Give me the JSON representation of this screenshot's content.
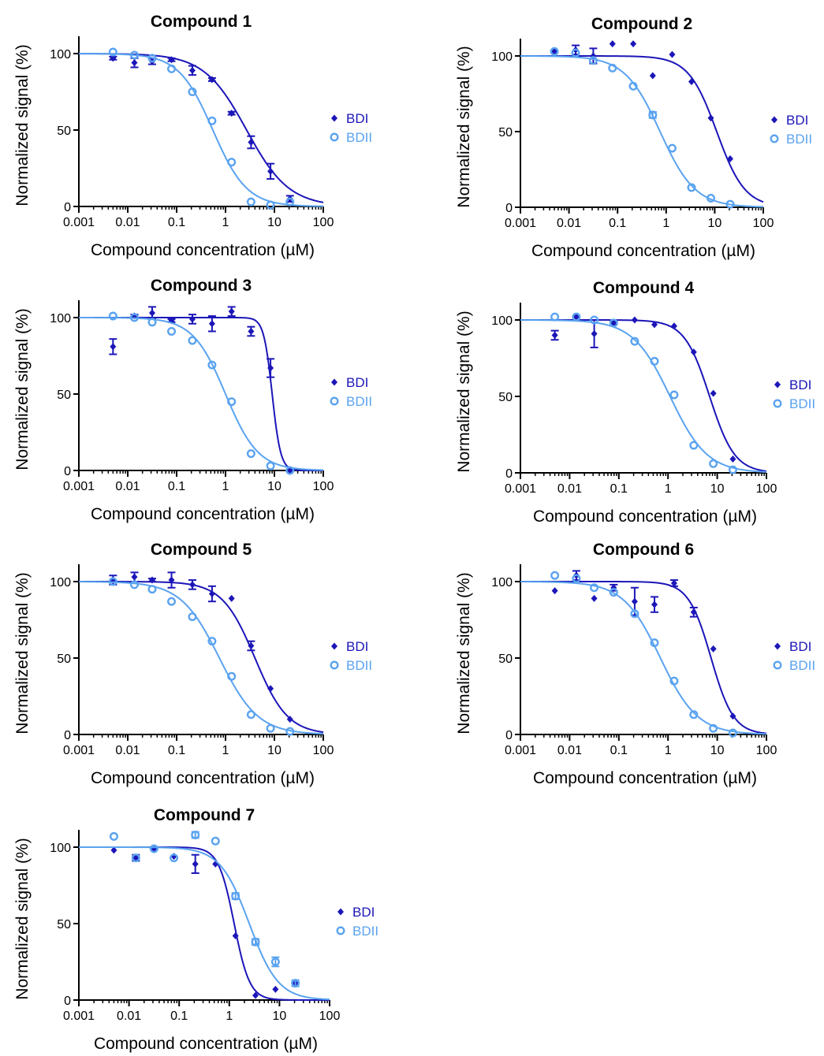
{
  "colors": {
    "BDI": "#1c16b8",
    "BDII": "#5aa3f0"
  },
  "chart_data": [
    {
      "type": "scatter",
      "title": "Compound 1",
      "xlabel": "Compound concentration (µM)",
      "ylabel": "Normalized signal (%)",
      "xscale": "log",
      "xlim": [
        0.001,
        100
      ],
      "ylim": [
        0,
        100
      ],
      "x_ticks": [
        "0.001",
        "0.01",
        "0.1",
        "1",
        "10",
        "100"
      ],
      "y_ticks": [
        "0",
        "50",
        "100"
      ],
      "legend": [
        "BDI",
        "BDII"
      ],
      "series": [
        {
          "name": "BDI",
          "marker": "diamond",
          "x": [
            0.005,
            0.0137,
            0.0316,
            0.0786,
            0.21,
            0.53,
            1.33,
            3.33,
            8.33,
            20.8
          ],
          "y": [
            97,
            94,
            95,
            96,
            89,
            83,
            61,
            42,
            23,
            5
          ],
          "err": [
            1,
            3,
            2,
            1,
            3,
            1,
            1,
            4,
            5,
            2
          ],
          "fit": {
            "top": 100,
            "bottom": 0,
            "ic50": 2.7,
            "hill": 1.0
          }
        },
        {
          "name": "BDII",
          "marker": "circle",
          "x": [
            0.005,
            0.0137,
            0.0316,
            0.0786,
            0.21,
            0.53,
            1.33,
            3.33,
            8.33,
            20.8
          ],
          "y": [
            101,
            99,
            97,
            90,
            75,
            56,
            29,
            3,
            1,
            3
          ],
          "err": [
            0,
            0,
            0,
            0,
            0,
            0,
            0,
            0,
            0,
            0
          ],
          "fit": {
            "top": 100,
            "bottom": 0,
            "ic50": 0.55,
            "hill": 1.25
          }
        }
      ]
    },
    {
      "type": "scatter",
      "title": "Compound 2",
      "xlabel": "Compound concentration (µM)",
      "ylabel": "Normalized signal (%)",
      "xscale": "log",
      "xlim": [
        0.001,
        100
      ],
      "ylim": [
        0,
        100
      ],
      "x_ticks": [
        "0.001",
        "0.01",
        "0.1",
        "1",
        "10",
        "100"
      ],
      "y_ticks": [
        "0",
        "50",
        "100"
      ],
      "legend": [
        "BDI",
        "BDII"
      ],
      "series": [
        {
          "name": "BDI",
          "marker": "diamond",
          "x": [
            0.005,
            0.0137,
            0.0316,
            0.0786,
            0.21,
            0.53,
            1.33,
            3.33,
            8.33,
            20.8
          ],
          "y": [
            103,
            104,
            100,
            108,
            108,
            87,
            101,
            83,
            59,
            32
          ],
          "err": [
            0,
            3,
            5,
            0,
            0,
            0,
            0,
            0,
            0,
            0
          ],
          "fit": {
            "top": 100,
            "bottom": 0,
            "ic50": 11,
            "hill": 1.5
          }
        },
        {
          "name": "BDII",
          "marker": "circle",
          "x": [
            0.005,
            0.0137,
            0.0316,
            0.0786,
            0.21,
            0.53,
            1.33,
            3.33,
            8.33,
            20.8
          ],
          "y": [
            103,
            102,
            97,
            92,
            80,
            61,
            39,
            13,
            6,
            2
          ],
          "err": [
            0,
            0,
            0,
            0,
            0,
            2,
            0,
            0,
            0,
            0
          ],
          "fit": {
            "top": 100,
            "bottom": 0,
            "ic50": 0.75,
            "hill": 1.2
          }
        }
      ]
    },
    {
      "type": "scatter",
      "title": "Compound 3",
      "xlabel": "Compound concentration (µM)",
      "ylabel": "Normalized signal (%)",
      "xscale": "log",
      "xlim": [
        0.001,
        100
      ],
      "ylim": [
        0,
        100
      ],
      "x_ticks": [
        "0.001",
        "0.01",
        "0.1",
        "1",
        "10",
        "100"
      ],
      "y_ticks": [
        "0",
        "50",
        "100"
      ],
      "legend": [
        "BDI",
        "BDII"
      ],
      "series": [
        {
          "name": "BDI",
          "marker": "diamond",
          "x": [
            0.005,
            0.0137,
            0.0316,
            0.0786,
            0.21,
            0.53,
            1.33,
            3.33,
            8.33,
            20.8
          ],
          "y": [
            81,
            101,
            103,
            98,
            99,
            96,
            104,
            91,
            67,
            0
          ],
          "err": [
            5,
            1,
            4,
            1,
            3,
            5,
            3,
            3,
            6,
            0
          ],
          "fit": {
            "top": 100,
            "bottom": 0,
            "ic50": 9,
            "hill": 5
          }
        },
        {
          "name": "BDII",
          "marker": "circle",
          "x": [
            0.005,
            0.0137,
            0.0316,
            0.0786,
            0.21,
            0.53,
            1.33,
            3.33,
            8.33,
            20.8
          ],
          "y": [
            101,
            100,
            97,
            91,
            85,
            69,
            45,
            11,
            3,
            0
          ],
          "err": [
            0,
            0,
            0,
            0,
            0,
            0,
            0,
            0,
            0,
            0
          ],
          "fit": {
            "top": 100,
            "bottom": 0,
            "ic50": 1.0,
            "hill": 1.3
          }
        }
      ]
    },
    {
      "type": "scatter",
      "title": "Compound 4",
      "xlabel": "Compound concentration (µM)",
      "ylabel": "Normalized signal (%)",
      "xscale": "log",
      "xlim": [
        0.001,
        100
      ],
      "ylim": [
        0,
        100
      ],
      "x_ticks": [
        "0.001",
        "0.01",
        "0.1",
        "1",
        "10",
        "100"
      ],
      "y_ticks": [
        "0",
        "50",
        "100"
      ],
      "legend": [
        "BDI",
        "BDII"
      ],
      "series": [
        {
          "name": "BDI",
          "marker": "diamond",
          "x": [
            0.005,
            0.0137,
            0.0316,
            0.0786,
            0.21,
            0.53,
            1.33,
            3.33,
            8.33,
            20.8
          ],
          "y": [
            90,
            102,
            91,
            98,
            100,
            97,
            96,
            79,
            52,
            9
          ],
          "err": [
            3,
            0,
            9,
            1,
            0,
            0,
            0,
            0,
            0,
            0
          ],
          "fit": {
            "top": 100,
            "bottom": 0,
            "ic50": 7,
            "hill": 1.7
          }
        },
        {
          "name": "BDII",
          "marker": "circle",
          "x": [
            0.005,
            0.0137,
            0.0316,
            0.0786,
            0.21,
            0.53,
            1.33,
            3.33,
            8.33,
            20.8
          ],
          "y": [
            102,
            102,
            100,
            98,
            86,
            73,
            51,
            18,
            6,
            2
          ],
          "err": [
            0,
            0,
            0,
            0,
            0,
            0,
            0,
            0,
            0,
            0
          ],
          "fit": {
            "top": 100,
            "bottom": 0,
            "ic50": 1.1,
            "hill": 1.15
          }
        }
      ]
    },
    {
      "type": "scatter",
      "title": "Compound 5",
      "xlabel": "Compound concentration (µM)",
      "ylabel": "Normalized signal (%)",
      "xscale": "log",
      "xlim": [
        0.001,
        100
      ],
      "ylim": [
        0,
        100
      ],
      "x_ticks": [
        "0.001",
        "0.01",
        "0.1",
        "1",
        "10",
        "100"
      ],
      "y_ticks": [
        "0",
        "50",
        "100"
      ],
      "legend": [
        "BDI",
        "BDII"
      ],
      "series": [
        {
          "name": "BDI",
          "marker": "diamond",
          "x": [
            0.005,
            0.0137,
            0.0316,
            0.0786,
            0.21,
            0.53,
            1.33,
            3.33,
            8.33,
            20.8
          ],
          "y": [
            101,
            103,
            101,
            101,
            98,
            92,
            89,
            58,
            30,
            10
          ],
          "err": [
            3,
            3,
            1,
            5,
            3,
            5,
            0,
            3,
            0,
            0
          ],
          "fit": {
            "top": 100,
            "bottom": 0,
            "ic50": 4.0,
            "hill": 1.3
          }
        },
        {
          "name": "BDII",
          "marker": "circle",
          "x": [
            0.005,
            0.0137,
            0.0316,
            0.0786,
            0.21,
            0.53,
            1.33,
            3.33,
            8.33,
            20.8
          ],
          "y": [
            100,
            98,
            95,
            87,
            77,
            61,
            38,
            13,
            4,
            2
          ],
          "err": [
            0,
            0,
            0,
            0,
            0,
            0,
            0,
            0,
            0,
            0
          ],
          "fit": {
            "top": 100,
            "bottom": 0,
            "ic50": 0.75,
            "hill": 1.1
          }
        }
      ]
    },
    {
      "type": "scatter",
      "title": "Compound 6",
      "xlabel": "Compound concentration (µM)",
      "ylabel": "Normalized signal (%)",
      "xscale": "log",
      "xlim": [
        0.001,
        100
      ],
      "ylim": [
        0,
        100
      ],
      "x_ticks": [
        "0.001",
        "0.01",
        "0.1",
        "1",
        "10",
        "100"
      ],
      "y_ticks": [
        "0",
        "50",
        "100"
      ],
      "legend": [
        "BDI",
        "BDII"
      ],
      "series": [
        {
          "name": "BDI",
          "marker": "diamond",
          "x": [
            0.005,
            0.0137,
            0.0316,
            0.0786,
            0.21,
            0.53,
            1.33,
            3.33,
            8.33,
            20.8
          ],
          "y": [
            94,
            104,
            89,
            96,
            87,
            85,
            99,
            80,
            56,
            12
          ],
          "err": [
            0,
            3,
            0,
            2,
            9,
            5,
            2,
            3,
            0,
            0
          ],
          "fit": {
            "top": 100,
            "bottom": 0,
            "ic50": 7.5,
            "hill": 1.9
          }
        },
        {
          "name": "BDII",
          "marker": "circle",
          "x": [
            0.005,
            0.0137,
            0.0316,
            0.0786,
            0.21,
            0.53,
            1.33,
            3.33,
            8.33,
            20.8
          ],
          "y": [
            104,
            102,
            96,
            93,
            79,
            60,
            35,
            13,
            4,
            1
          ],
          "err": [
            0,
            0,
            0,
            0,
            0,
            0,
            0,
            0,
            0,
            0
          ],
          "fit": {
            "top": 100,
            "bottom": 0,
            "ic50": 0.7,
            "hill": 1.15
          }
        }
      ]
    },
    {
      "type": "scatter",
      "title": "Compound 7",
      "xlabel": "Compound concentration (µM)",
      "ylabel": "Normalized signal (%)",
      "xscale": "log",
      "xlim": [
        0.001,
        100
      ],
      "ylim": [
        0,
        100
      ],
      "x_ticks": [
        "0.001",
        "0.01",
        "0.1",
        "1",
        "10",
        "100"
      ],
      "y_ticks": [
        "0",
        "50",
        "100"
      ],
      "legend": [
        "BDI",
        "BDII"
      ],
      "series": [
        {
          "name": "BDI",
          "marker": "diamond",
          "x": [
            0.005,
            0.0137,
            0.0316,
            0.0786,
            0.21,
            0.53,
            1.33,
            3.33,
            8.33,
            20.8
          ],
          "y": [
            98,
            93,
            99,
            94,
            89,
            89,
            42,
            3,
            7,
            11
          ],
          "err": [
            0,
            2,
            0,
            0,
            6,
            0,
            0,
            0,
            0,
            0
          ],
          "fit": {
            "top": 100,
            "bottom": 0,
            "ic50": 1.25,
            "hill": 2.8
          }
        },
        {
          "name": "BDII",
          "marker": "circle",
          "x": [
            0.005,
            0.0137,
            0.0316,
            0.0786,
            0.21,
            0.53,
            1.33,
            3.33,
            8.33,
            20.8
          ],
          "y": [
            107,
            93,
            99,
            93,
            108,
            104,
            68,
            38,
            25,
            11
          ],
          "err": [
            0,
            0,
            0,
            0,
            2,
            0,
            2,
            2,
            3,
            2
          ],
          "fit": {
            "top": 100,
            "bottom": 0,
            "ic50": 2.5,
            "hill": 1.5
          }
        }
      ]
    }
  ]
}
